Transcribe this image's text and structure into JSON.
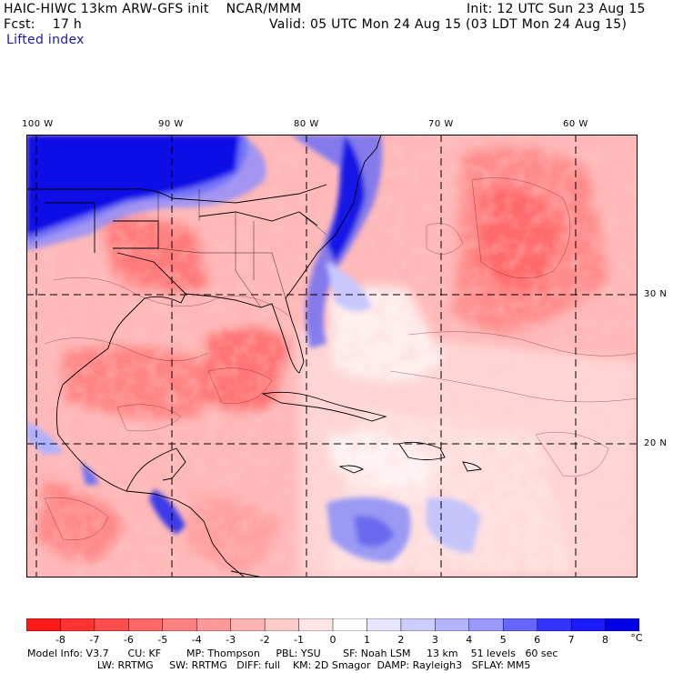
{
  "header": {
    "title_left": "HAIC-HIWC 13km ARW-GFS init    NCAR/MMM",
    "fcst": "Fcst:    17 h",
    "init": "Init: 12 UTC Sun 23 Aug 15",
    "valid": "Valid: 05 UTC Mon 24 Aug 15 (03 LDT Mon 24 Aug 15)",
    "field": "Lifted index"
  },
  "map": {
    "lon_labels": [
      "100 W",
      "90 W",
      "80 W",
      "70 W",
      "60 W"
    ],
    "lat_labels": [
      "30 N",
      "20 N"
    ]
  },
  "colorbar": {
    "labels": [
      "-8",
      "-7",
      "-6",
      "-5",
      "-4",
      "-3",
      "-2",
      "-1",
      "0",
      "1",
      "2",
      "3",
      "4",
      "5",
      "6",
      "7",
      "8"
    ],
    "unit": "°C",
    "colors": [
      "#ff1a1a",
      "#ff3333",
      "#ff4d4d",
      "#ff6666",
      "#ff8080",
      "#ff9999",
      "#ffb3b3",
      "#ffcccc",
      "#ffe6e6",
      "#ffffff",
      "#e6e6ff",
      "#ccccff",
      "#b3b3ff",
      "#9999ff",
      "#6666ff",
      "#3333ff",
      "#1a1aff",
      "#0000e6"
    ]
  },
  "model_info": {
    "line1": "Model Info: V3.7      CU: KF        MP: Thompson     PBL: YSU       SF: Noah LSM     13 km    51 levels   60 sec",
    "line2": "                      LW: RRTMG     SW: RRTMG   DIFF: full    KM: 2D Smagor  DAMP: Rayleigh3   SFLAY: MM5"
  }
}
